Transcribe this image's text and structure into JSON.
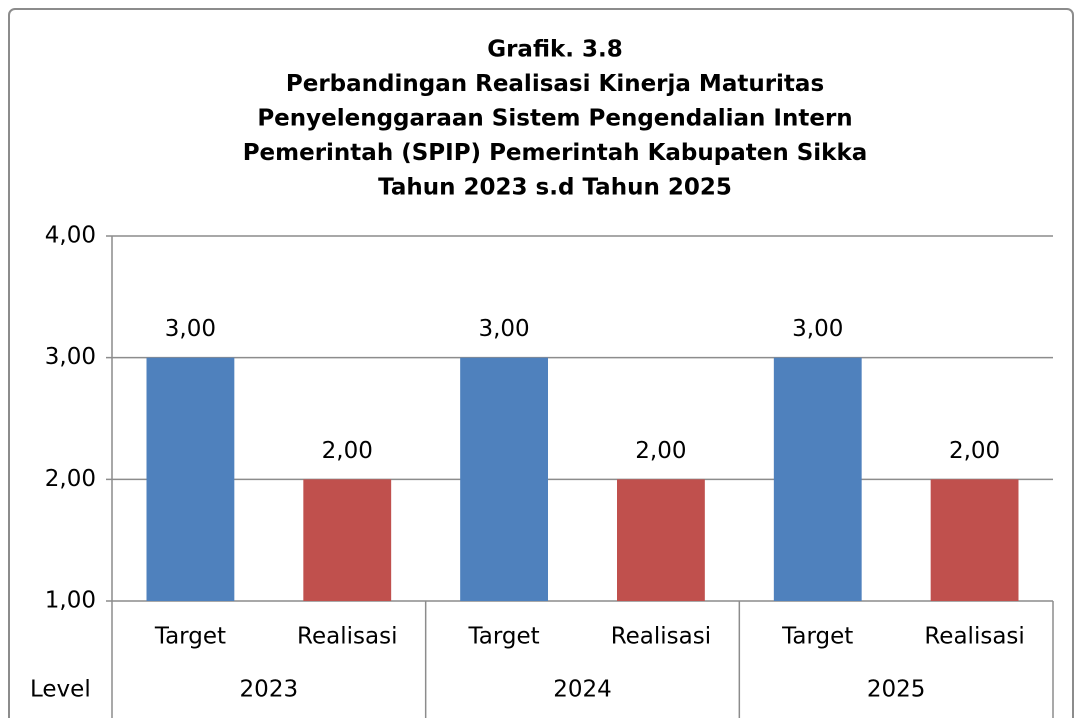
{
  "chart_data": {
    "type": "bar",
    "title": [
      "Grafik. 3.8",
      "Perbandingan Realisasi Kinerja Maturitas",
      "Penyelenggaraan Sistem Pengendalian Intern",
      "Pemerintah (SPIP) Pemerintah Kabupaten Sikka",
      "Tahun 2023 s.d Tahun 2025"
    ],
    "ylabel": "Level",
    "categories": [
      "2023",
      "2024",
      "2025"
    ],
    "series": [
      {
        "name": "Target",
        "color": "#4f81bd",
        "values": [
          3,
          3,
          3
        ],
        "value_labels": [
          "3,00",
          "3,00",
          "3,00"
        ]
      },
      {
        "name": "Realisasi",
        "color": "#c0504d",
        "values": [
          2,
          2,
          2
        ],
        "value_labels": [
          "2,00",
          "2,00",
          "2,00"
        ]
      }
    ],
    "ylim": [
      1,
      4
    ],
    "yticks": [
      {
        "value": 1,
        "label": "1,00"
      },
      {
        "value": 2,
        "label": "2,00"
      },
      {
        "value": 3,
        "label": "3,00"
      },
      {
        "value": 4,
        "label": "4,00"
      }
    ],
    "grid": true
  }
}
